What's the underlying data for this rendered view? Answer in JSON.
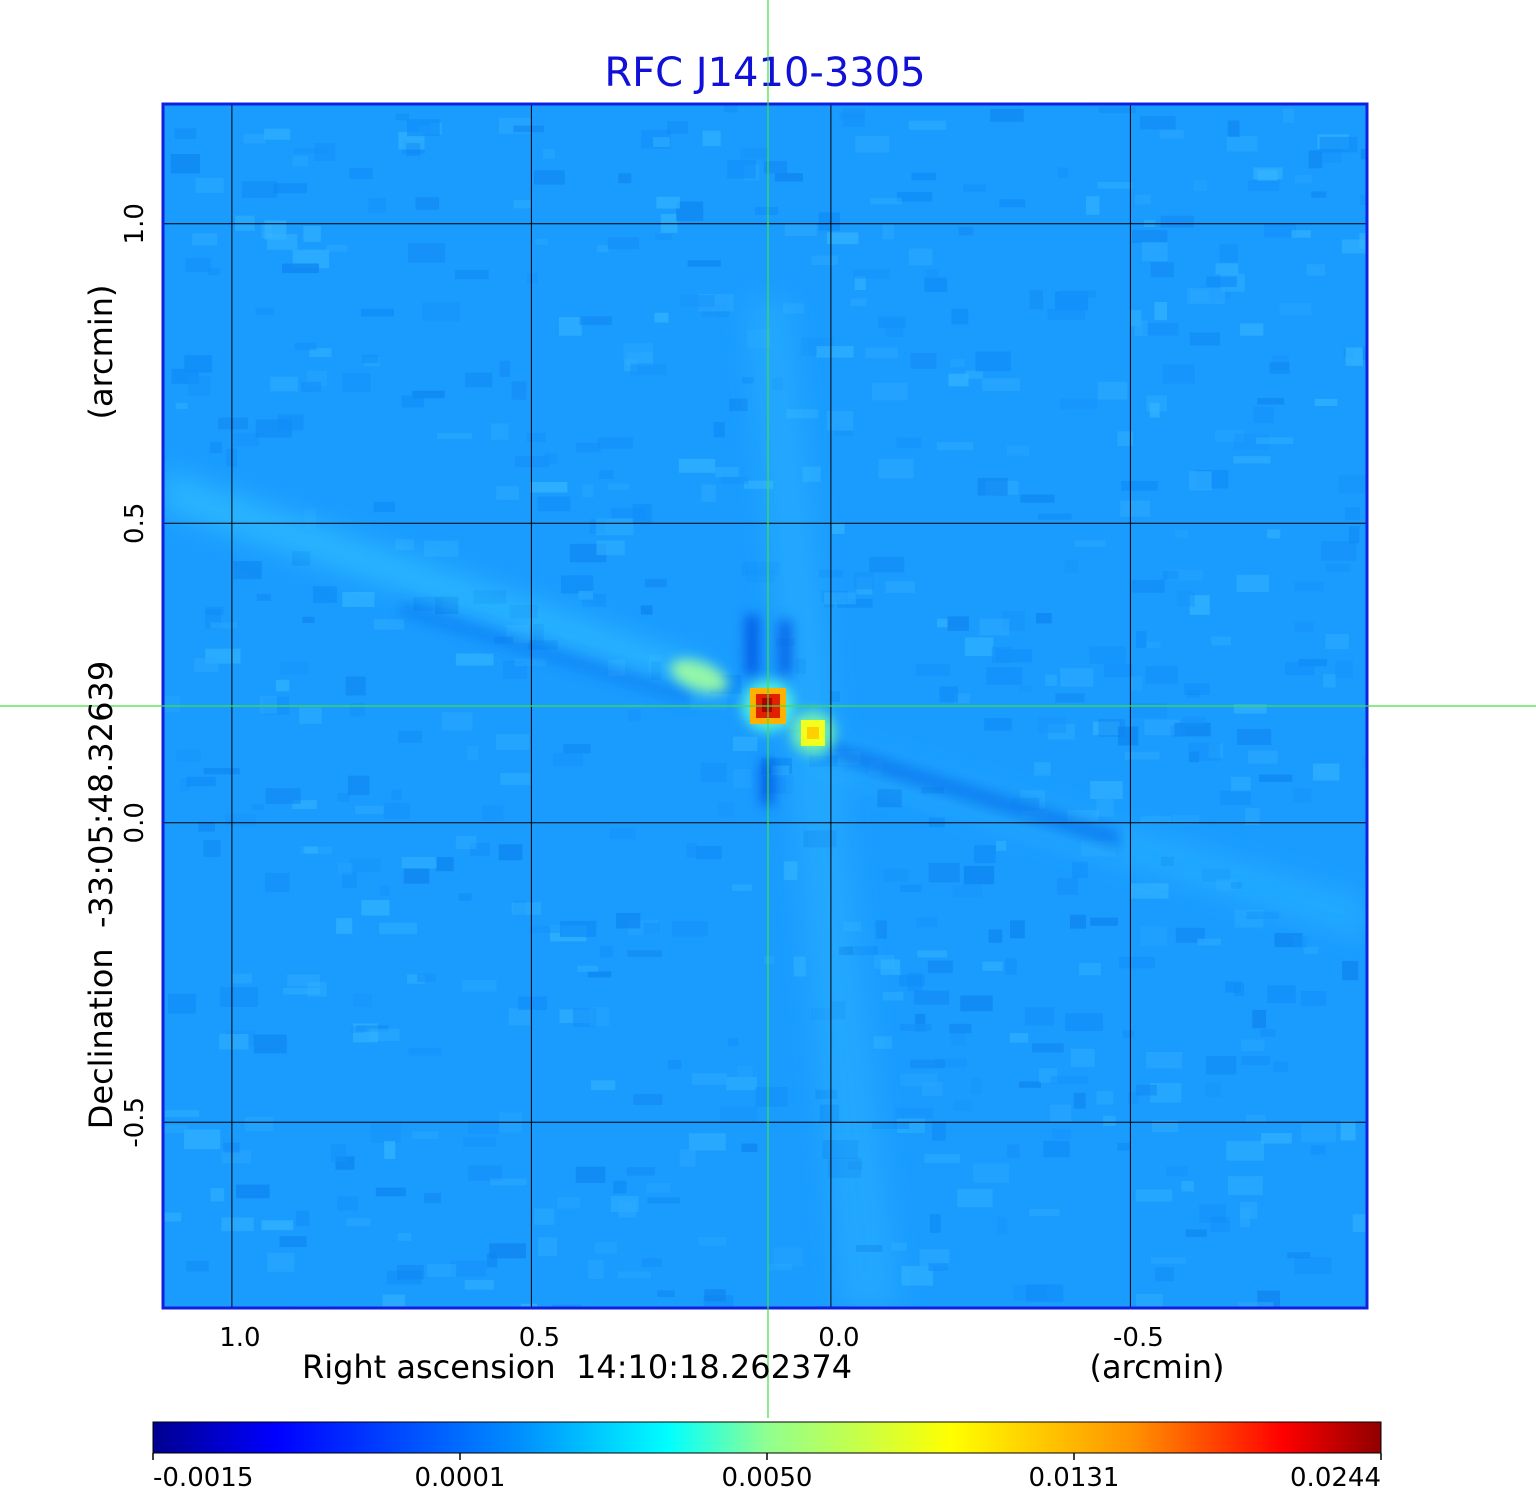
{
  "chart_data": {
    "type": "heatmap",
    "title": "RFC J1410-3305",
    "xlabel": "Right ascension  14:10:18.262374",
    "xunit": "(arcmin)",
    "ylabel": "Declination  -33:05:48.32639",
    "yunit": "(arcmin)",
    "xlim": [
      1.115,
      -0.895
    ],
    "ylim": [
      -0.81,
      1.2
    ],
    "x_ticks": [
      {
        "value": 1.0,
        "label": "1.0"
      },
      {
        "value": 0.5,
        "label": "0.5"
      },
      {
        "value": 0.0,
        "label": "0.0"
      },
      {
        "value": -0.5,
        "label": "-0.5"
      }
    ],
    "y_ticks": [
      {
        "value": 1.0,
        "label": "1.0"
      },
      {
        "value": 0.5,
        "label": "0.5"
      },
      {
        "value": 0.0,
        "label": "0.0"
      },
      {
        "value": -0.5,
        "label": "-0.5"
      }
    ],
    "grid": true,
    "crosshair": {
      "x": 0.105,
      "y": 0.195
    },
    "colormap": "jet",
    "colorbar": {
      "labels": [
        "-0.0015",
        "0.0001",
        "0.0050",
        "0.0131",
        "0.0244"
      ],
      "range": [
        -0.0015,
        0.0244
      ]
    },
    "components": [
      {
        "x": 0.105,
        "y": 0.195,
        "peak": 0.0244
      },
      {
        "x": 0.03,
        "y": 0.15,
        "peak": 0.0131
      },
      {
        "x": 0.22,
        "y": 0.245,
        "peak": 0.005
      }
    ]
  },
  "colors": {
    "title": "#1010d8",
    "frame": "#1020e0",
    "grid": "#000000",
    "crosshair": "#40e040",
    "background_field": "#1a9cff"
  }
}
